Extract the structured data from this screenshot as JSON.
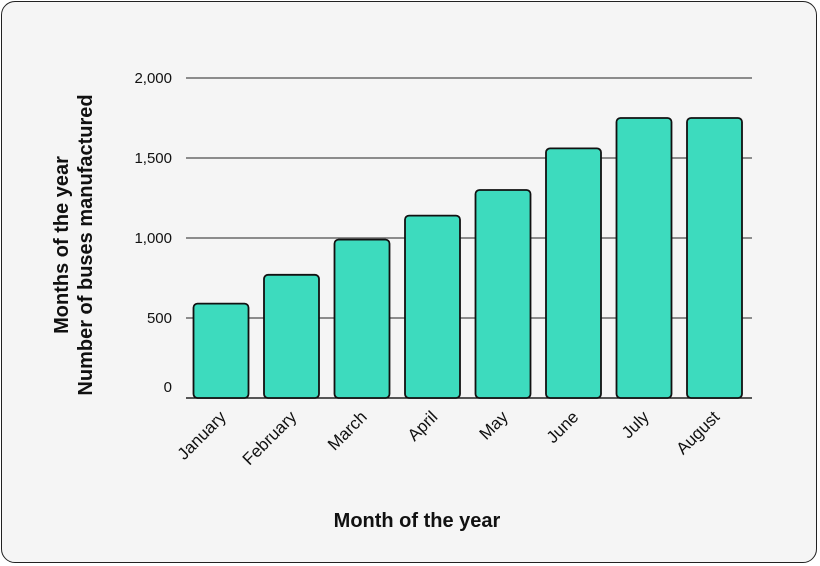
{
  "chart_data": {
    "type": "bar",
    "categories": [
      "January",
      "February",
      "March",
      "April",
      "May",
      "June",
      "July",
      "August"
    ],
    "values": [
      590,
      770,
      990,
      1140,
      1300,
      1560,
      1750,
      1750
    ],
    "xlabel": "Month of the year",
    "ylabel_lines": [
      "Months of the year",
      "Number of buses manufactured"
    ],
    "ylim": [
      0,
      2000
    ],
    "yticks": [
      0,
      500,
      1000,
      1500,
      2000
    ],
    "ytick_labels": [
      "0",
      "500",
      "1,000",
      "1,500",
      "2,000"
    ],
    "grid": true,
    "bar_color": "#3ddbbe",
    "bar_edge_color": "#111111"
  }
}
